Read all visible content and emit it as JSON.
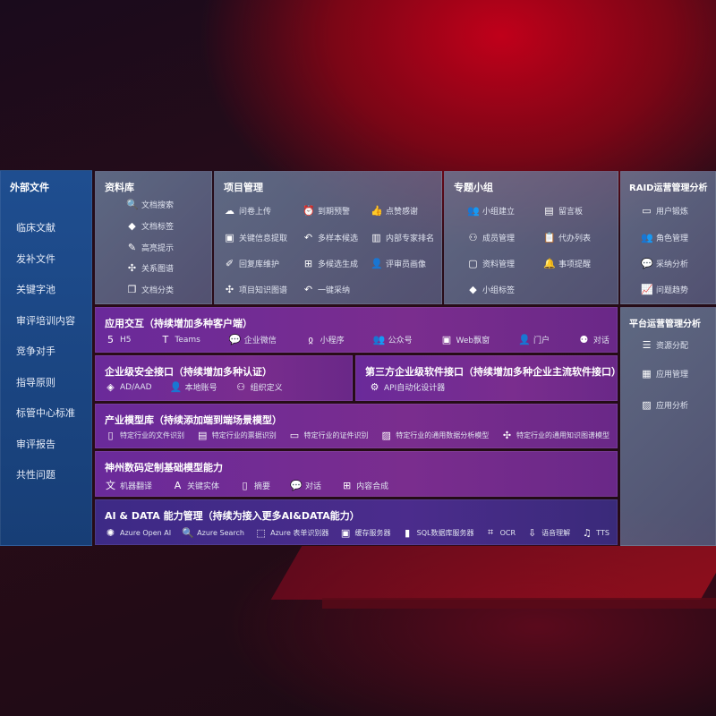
{
  "sidebar": {
    "title": "外部文件",
    "items": [
      "临床文献",
      "发补文件",
      "关键字池",
      "审评培训内容",
      "竞争对手",
      "指导原则",
      "标管中心标准",
      "审评报告",
      "共性问题"
    ]
  },
  "library": {
    "title": "资料库",
    "items": [
      {
        "icon": "doc-search-icon",
        "label": "文档搜索"
      },
      {
        "icon": "tag-icon",
        "label": "文档标签"
      },
      {
        "icon": "pen-icon",
        "label": "高亮提示"
      },
      {
        "icon": "graph-icon",
        "label": "关系图谱"
      },
      {
        "icon": "doc-copy-icon",
        "label": "文档分类"
      }
    ]
  },
  "project": {
    "title": "项目管理",
    "items": [
      {
        "icon": "cloud-upload-icon",
        "label": "问卷上传"
      },
      {
        "icon": "alarm-icon",
        "label": "到期预警"
      },
      {
        "icon": "thumbs-up-icon",
        "label": "点赞感谢"
      },
      {
        "icon": "window-icon",
        "label": "关键信息提取"
      },
      {
        "icon": "reply-icon",
        "label": "多样本候选"
      },
      {
        "icon": "ranking-icon",
        "label": "内部专家排名"
      },
      {
        "icon": "edit-icon",
        "label": "回复库维护"
      },
      {
        "icon": "puzzle-icon",
        "label": "多候选生成"
      },
      {
        "icon": "user-icon",
        "label": "评审员画像"
      },
      {
        "icon": "graph-icon",
        "label": "项目知识图谱"
      },
      {
        "icon": "reply-icon",
        "label": "一键采纳"
      }
    ]
  },
  "group": {
    "title": "专题小组",
    "items": [
      {
        "icon": "users-icon",
        "label": "小组建立"
      },
      {
        "icon": "bbs-icon",
        "label": "留言板"
      },
      {
        "icon": "user-add-icon",
        "label": "成员管理"
      },
      {
        "icon": "clipboard-icon",
        "label": "代办列表"
      },
      {
        "icon": "folder-icon",
        "label": "资料管理"
      },
      {
        "icon": "bell-icon",
        "label": "事项提醒"
      },
      {
        "icon": "tag-icon",
        "label": "小组标签"
      }
    ]
  },
  "raid": {
    "title": "RAID运营管理分析",
    "items": [
      {
        "icon": "id-card-icon",
        "label": "用户锻炼"
      },
      {
        "icon": "users-icon",
        "label": "角色管理"
      },
      {
        "icon": "qa-icon",
        "label": "采纳分析"
      },
      {
        "icon": "trend-icon",
        "label": "问题趋势"
      }
    ]
  },
  "platform": {
    "title": "平台运营管理分析",
    "items": [
      {
        "icon": "checklist-icon",
        "label": "资源分配"
      },
      {
        "icon": "apps-icon",
        "label": "应用管理"
      },
      {
        "icon": "analytics-icon",
        "label": "应用分析"
      }
    ]
  },
  "app": {
    "title": "应用交互（持续增加多种客户端）",
    "items": [
      {
        "icon": "html5-icon",
        "label": "H5"
      },
      {
        "icon": "teams-icon",
        "label": "Teams"
      },
      {
        "icon": "wecom-icon",
        "label": "企业微信"
      },
      {
        "icon": "miniprogram-icon",
        "label": "小程序"
      },
      {
        "icon": "users-icon",
        "label": "公众号"
      },
      {
        "icon": "window-icon",
        "label": "Web飘窗"
      },
      {
        "icon": "portal-icon",
        "label": "门户"
      },
      {
        "icon": "chat-users-icon",
        "label": "对话"
      }
    ]
  },
  "security": {
    "title": "企业级安全接口（持续增加多种认证）",
    "items": [
      {
        "icon": "azure-ad-icon",
        "label": "AD/AAD"
      },
      {
        "icon": "local-user-icon",
        "label": "本地账号"
      },
      {
        "icon": "org-icon",
        "label": "组织定义"
      }
    ]
  },
  "third": {
    "title": "第三方企业级软件接口（持续增加多种企业主流软件接口）",
    "items": [
      {
        "icon": "gear-api-icon",
        "label": "API自动化设计器"
      }
    ]
  },
  "industry": {
    "title": "产业模型库（持续添加端到端场景模型）",
    "items": [
      {
        "icon": "file-icon",
        "label": "特定行业的文件识别"
      },
      {
        "icon": "receipt-icon",
        "label": "特定行业的票据识别"
      },
      {
        "icon": "id-card-icon",
        "label": "特定行业的证件识别"
      },
      {
        "icon": "chart-icon",
        "label": "特定行业的通用数据分析模型"
      },
      {
        "icon": "graph-icon",
        "label": "特定行业的通用知识图谱模型"
      }
    ]
  },
  "base": {
    "title": "神州数码定制基础模型能力",
    "items": [
      {
        "icon": "translate-icon",
        "label": "机器翻译"
      },
      {
        "icon": "entity-icon",
        "label": "关键实体"
      },
      {
        "icon": "summary-icon",
        "label": "摘要"
      },
      {
        "icon": "chat-icon",
        "label": "对话"
      },
      {
        "icon": "compose-icon",
        "label": "内容合成"
      }
    ]
  },
  "ai": {
    "title": "AI & DATA 能力管理（持续为接入更多AI&DATA能力）",
    "items": [
      {
        "icon": "openai-icon",
        "label": "Azure Open AI"
      },
      {
        "icon": "search-doc-icon",
        "label": "Azure Search"
      },
      {
        "icon": "form-recognizer-icon",
        "label": "Azure 表单识别器"
      },
      {
        "icon": "cache-icon",
        "label": "缓存服务器"
      },
      {
        "icon": "sql-icon",
        "label": "SQL数据库服务器"
      },
      {
        "icon": "ocr-icon",
        "label": "OCR"
      },
      {
        "icon": "speech-icon",
        "label": "语音理解"
      },
      {
        "icon": "tts-icon",
        "label": "TTS"
      }
    ]
  }
}
